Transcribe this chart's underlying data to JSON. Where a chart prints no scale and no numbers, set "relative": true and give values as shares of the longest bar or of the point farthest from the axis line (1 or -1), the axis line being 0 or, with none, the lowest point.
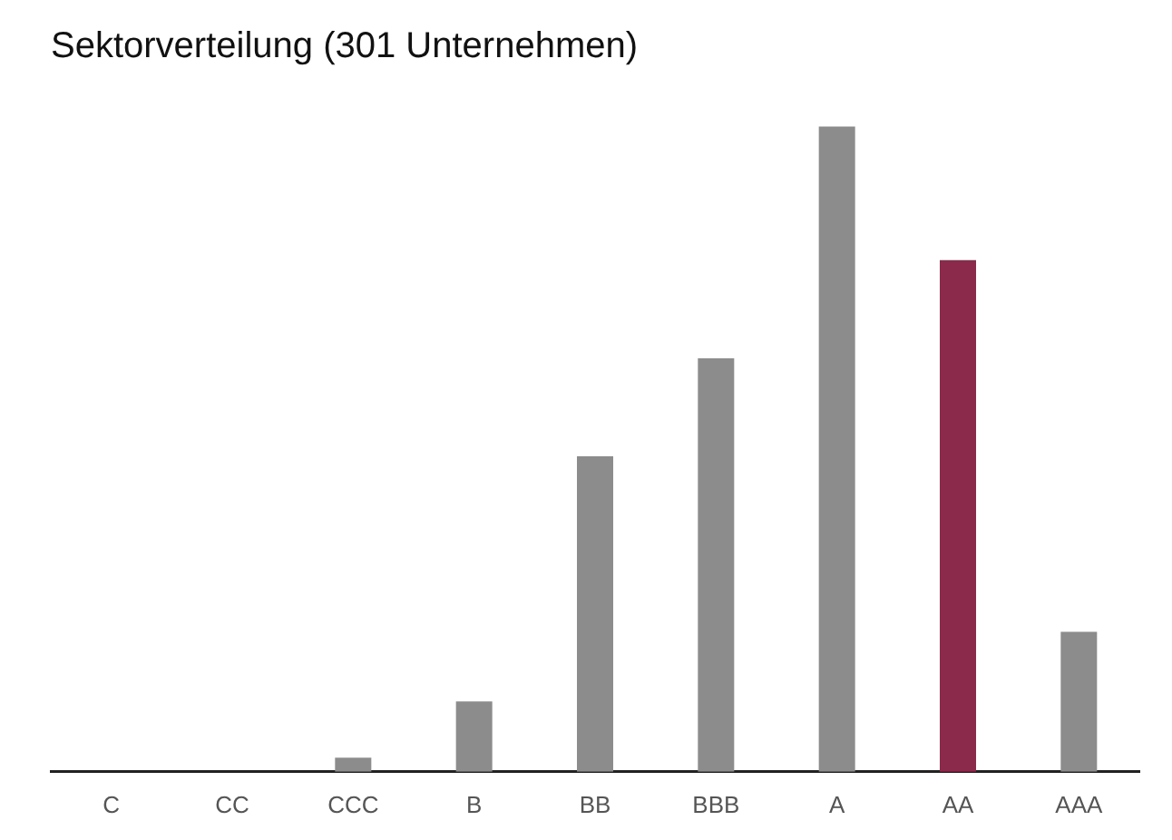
{
  "chart_data": {
    "type": "bar",
    "title": "Sektorverteilung (301 Unternehmen)",
    "relative": true,
    "categories": [
      "C",
      "CC",
      "CCC",
      "B",
      "BB",
      "BBB",
      "A",
      "AA",
      "AAA"
    ],
    "values": [
      0,
      0,
      0.022,
      0.109,
      0.489,
      0.641,
      1,
      0.793,
      0.217
    ],
    "colors": [
      "#8c8c8c",
      "#8c8c8c",
      "#8c8c8c",
      "#8c8c8c",
      "#8c8c8c",
      "#8c8c8c",
      "#8c8c8c",
      "#8b2a4b",
      "#8c8c8c"
    ],
    "grid": false,
    "legend": false
  }
}
